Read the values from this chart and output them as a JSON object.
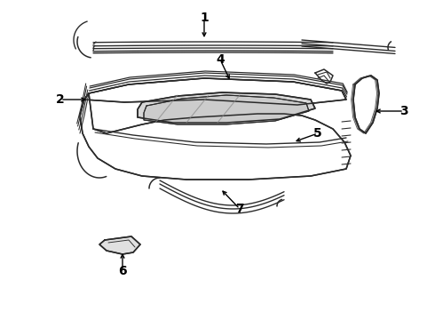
{
  "bg_color": "#ffffff",
  "line_color": "#2a2a2a",
  "label_color": "#000000",
  "arrow_color": "#000000",
  "lw": 1.1,
  "fig_w": 4.9,
  "fig_h": 3.6,
  "dpi": 100
}
